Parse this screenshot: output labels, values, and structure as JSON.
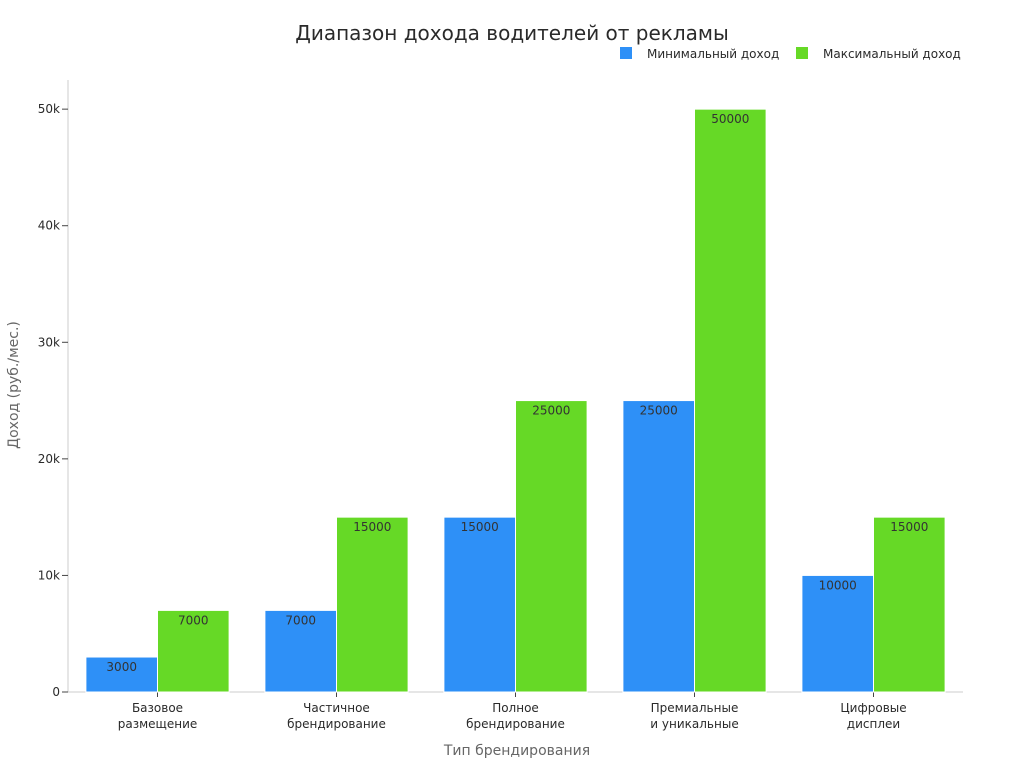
{
  "chart_data": {
    "type": "bar",
    "title": "Диапазон дохода водителей от рекламы",
    "xlabel": "Тип брендирования",
    "ylabel": "Доход (руб./мес.)",
    "categories": [
      [
        "Базовое",
        "размещение"
      ],
      [
        "Частичное",
        "брендирование"
      ],
      [
        "Полное",
        "брендирование"
      ],
      [
        "Премиальные",
        "и уникальные"
      ],
      [
        "Цифровые",
        "дисплеи"
      ]
    ],
    "series": [
      {
        "name": "Минимальный доход",
        "color": "#2e90f7",
        "values": [
          3000,
          7000,
          15000,
          25000,
          10000
        ]
      },
      {
        "name": "Максимальный доход",
        "color": "#66d926",
        "values": [
          7000,
          15000,
          25000,
          50000,
          15000
        ]
      }
    ],
    "ylim": [
      0,
      52500
    ],
    "yticks": [
      0,
      10000,
      20000,
      30000,
      40000,
      50000
    ],
    "ytick_labels": [
      "0",
      "10k",
      "20k",
      "30k",
      "40k",
      "50k"
    ],
    "legend": "top-right",
    "grid": false
  }
}
